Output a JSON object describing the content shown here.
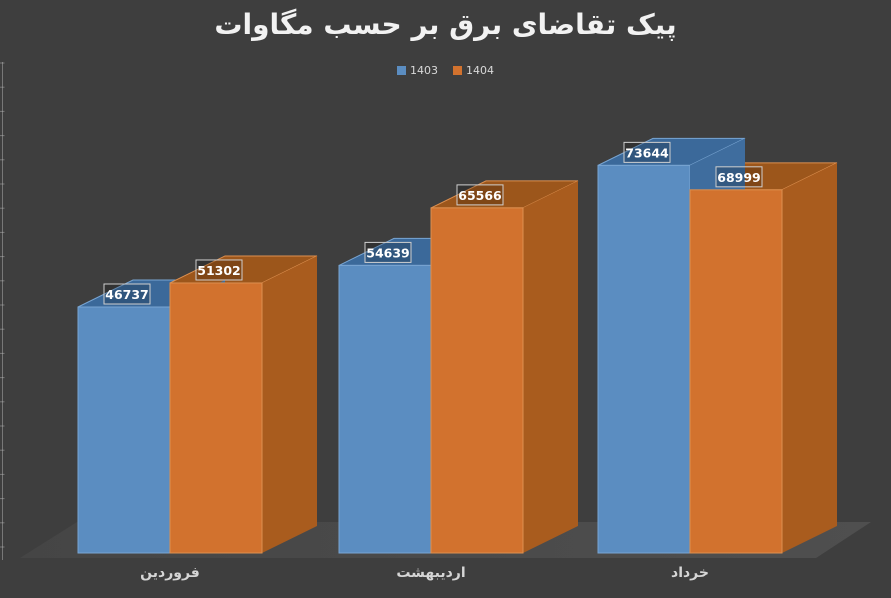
{
  "chart_data": {
    "type": "bar",
    "variant": "3d-clustered-column",
    "title": "پیک تقاضای برق بر حسب مگاوات",
    "categories": [
      "فروردین",
      "اردیبهشت",
      "خرداد"
    ],
    "series": [
      {
        "name": "1403",
        "values": [
          46737,
          54639,
          73644
        ],
        "color": "#5B8DC1",
        "color_top": "#3B699A",
        "color_side": "#3F6D9E",
        "edge": "#79A5D2"
      },
      {
        "name": "1404",
        "values": [
          51302,
          65566,
          68999
        ],
        "color": "#D2722E",
        "color_top": "#9C561B",
        "color_side": "#A95C1E",
        "edge": "#DD9050"
      }
    ],
    "data_labels": [
      [
        "46737",
        "54639",
        "73644"
      ],
      [
        "51302",
        "65566",
        "68999"
      ]
    ],
    "legend_position": "top",
    "grid": false,
    "value_axis": {
      "labels_visible": false,
      "ticks_visible": true
    },
    "background": "#3E3E3E",
    "floor_color": "#4A4A4A",
    "title_color": "#F2F2F2",
    "legend_text_color": "#D9D9D9",
    "category_label_color": "#D6D6D6",
    "data_label_text_color": "#FFFFFF",
    "data_label_border": "#CFCFCF"
  }
}
